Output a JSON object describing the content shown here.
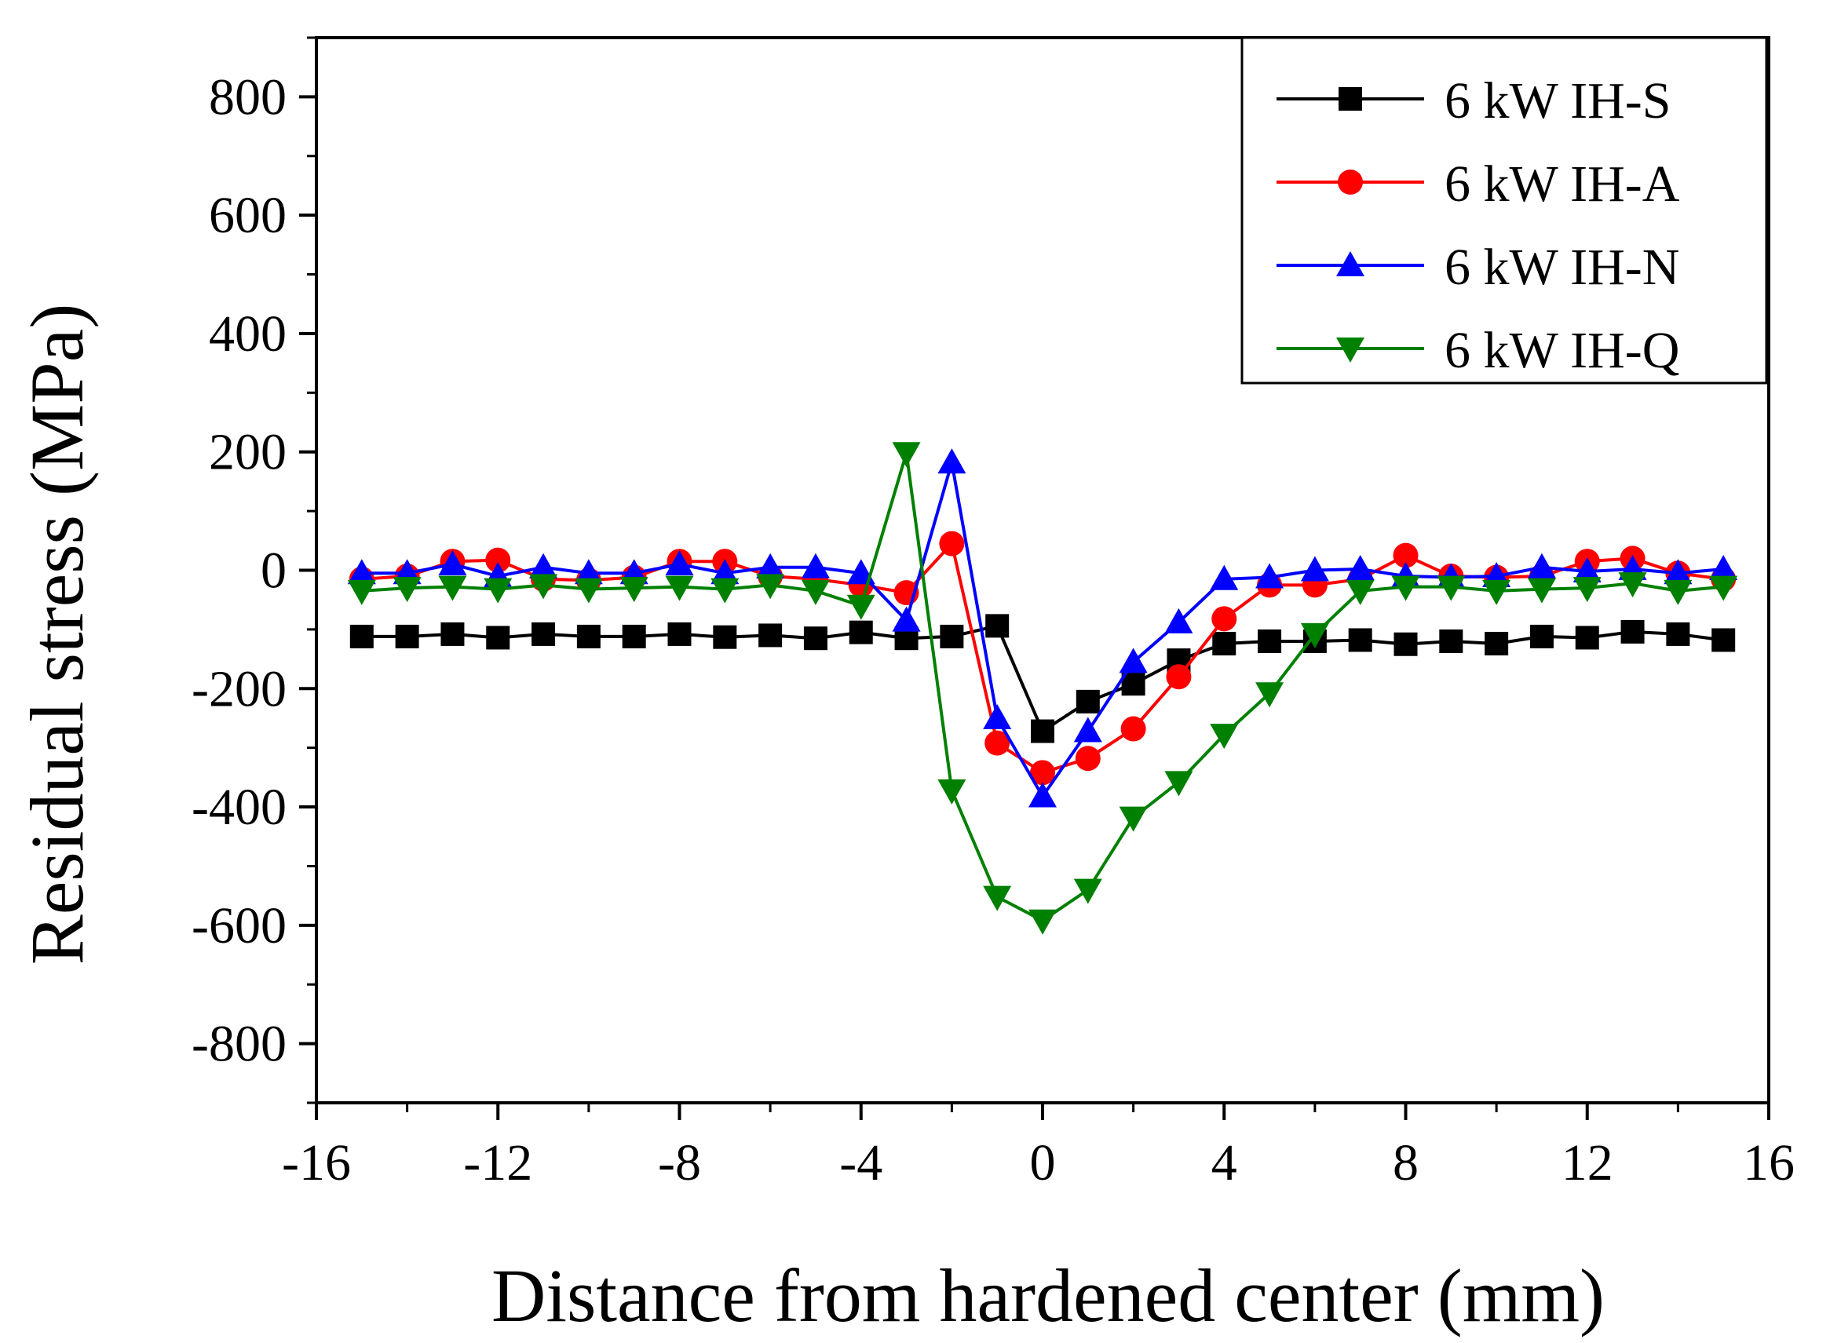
{
  "chart_data": {
    "type": "line",
    "title": "",
    "xlabel": "Distance from hardened center (mm)",
    "ylabel": "Residual stress (MPa)",
    "xlim": [
      -16,
      16
    ],
    "ylim": [
      -900,
      900
    ],
    "xticks": [
      -16,
      -12,
      -8,
      -4,
      0,
      4,
      8,
      12,
      16
    ],
    "yticks": [
      -800,
      -600,
      -400,
      -200,
      0,
      200,
      400,
      600,
      800
    ],
    "x": [
      -15,
      -14,
      -13,
      -12,
      -11,
      -10,
      -9,
      -8,
      -7,
      -6,
      -5,
      -4,
      -3,
      -2,
      -1,
      0,
      1,
      2,
      3,
      4,
      5,
      6,
      7,
      8,
      9,
      10,
      11,
      12,
      13,
      14,
      15
    ],
    "legend_position": "top-right",
    "series": [
      {
        "name": "6 kW IH-S",
        "color": "#000000",
        "marker": "square",
        "values": [
          -112,
          -112,
          -108,
          -114,
          -108,
          -112,
          -112,
          -108,
          -113,
          -110,
          -115,
          -105,
          -115,
          -112,
          -94,
          -272,
          -222,
          -192,
          -152,
          -124,
          -120,
          -120,
          -118,
          -125,
          -120,
          -124,
          -112,
          -114,
          -104,
          -108,
          -118
        ]
      },
      {
        "name": "6 kW IH-A",
        "color": "#ff0000",
        "marker": "circle",
        "values": [
          -15,
          -10,
          15,
          17,
          -15,
          -17,
          -12,
          15,
          15,
          -10,
          -15,
          -25,
          -38,
          45,
          -292,
          -342,
          -318,
          -268,
          -180,
          -82,
          -25,
          -25,
          -15,
          25,
          -10,
          -12,
          -10,
          15,
          20,
          -5,
          -15
        ]
      },
      {
        "name": "6 kW IH-N",
        "color": "#0000ff",
        "marker": "triangle-up",
        "values": [
          -5,
          -5,
          10,
          -10,
          5,
          -5,
          -5,
          10,
          -5,
          5,
          5,
          -5,
          -85,
          182,
          -250,
          -382,
          -272,
          -155,
          -88,
          -15,
          -12,
          0,
          2,
          -10,
          -12,
          -10,
          5,
          -2,
          2,
          -5,
          2
        ]
      },
      {
        "name": "6 kW IH-Q",
        "color": "#008000",
        "marker": "triangle-down",
        "values": [
          -35,
          -30,
          -28,
          -32,
          -25,
          -32,
          -30,
          -28,
          -32,
          -25,
          -35,
          -60,
          198,
          -372,
          -552,
          -592,
          -540,
          -418,
          -358,
          -278,
          -208,
          -108,
          -35,
          -28,
          -28,
          -35,
          -32,
          -30,
          -22,
          -35,
          -28
        ]
      }
    ]
  }
}
